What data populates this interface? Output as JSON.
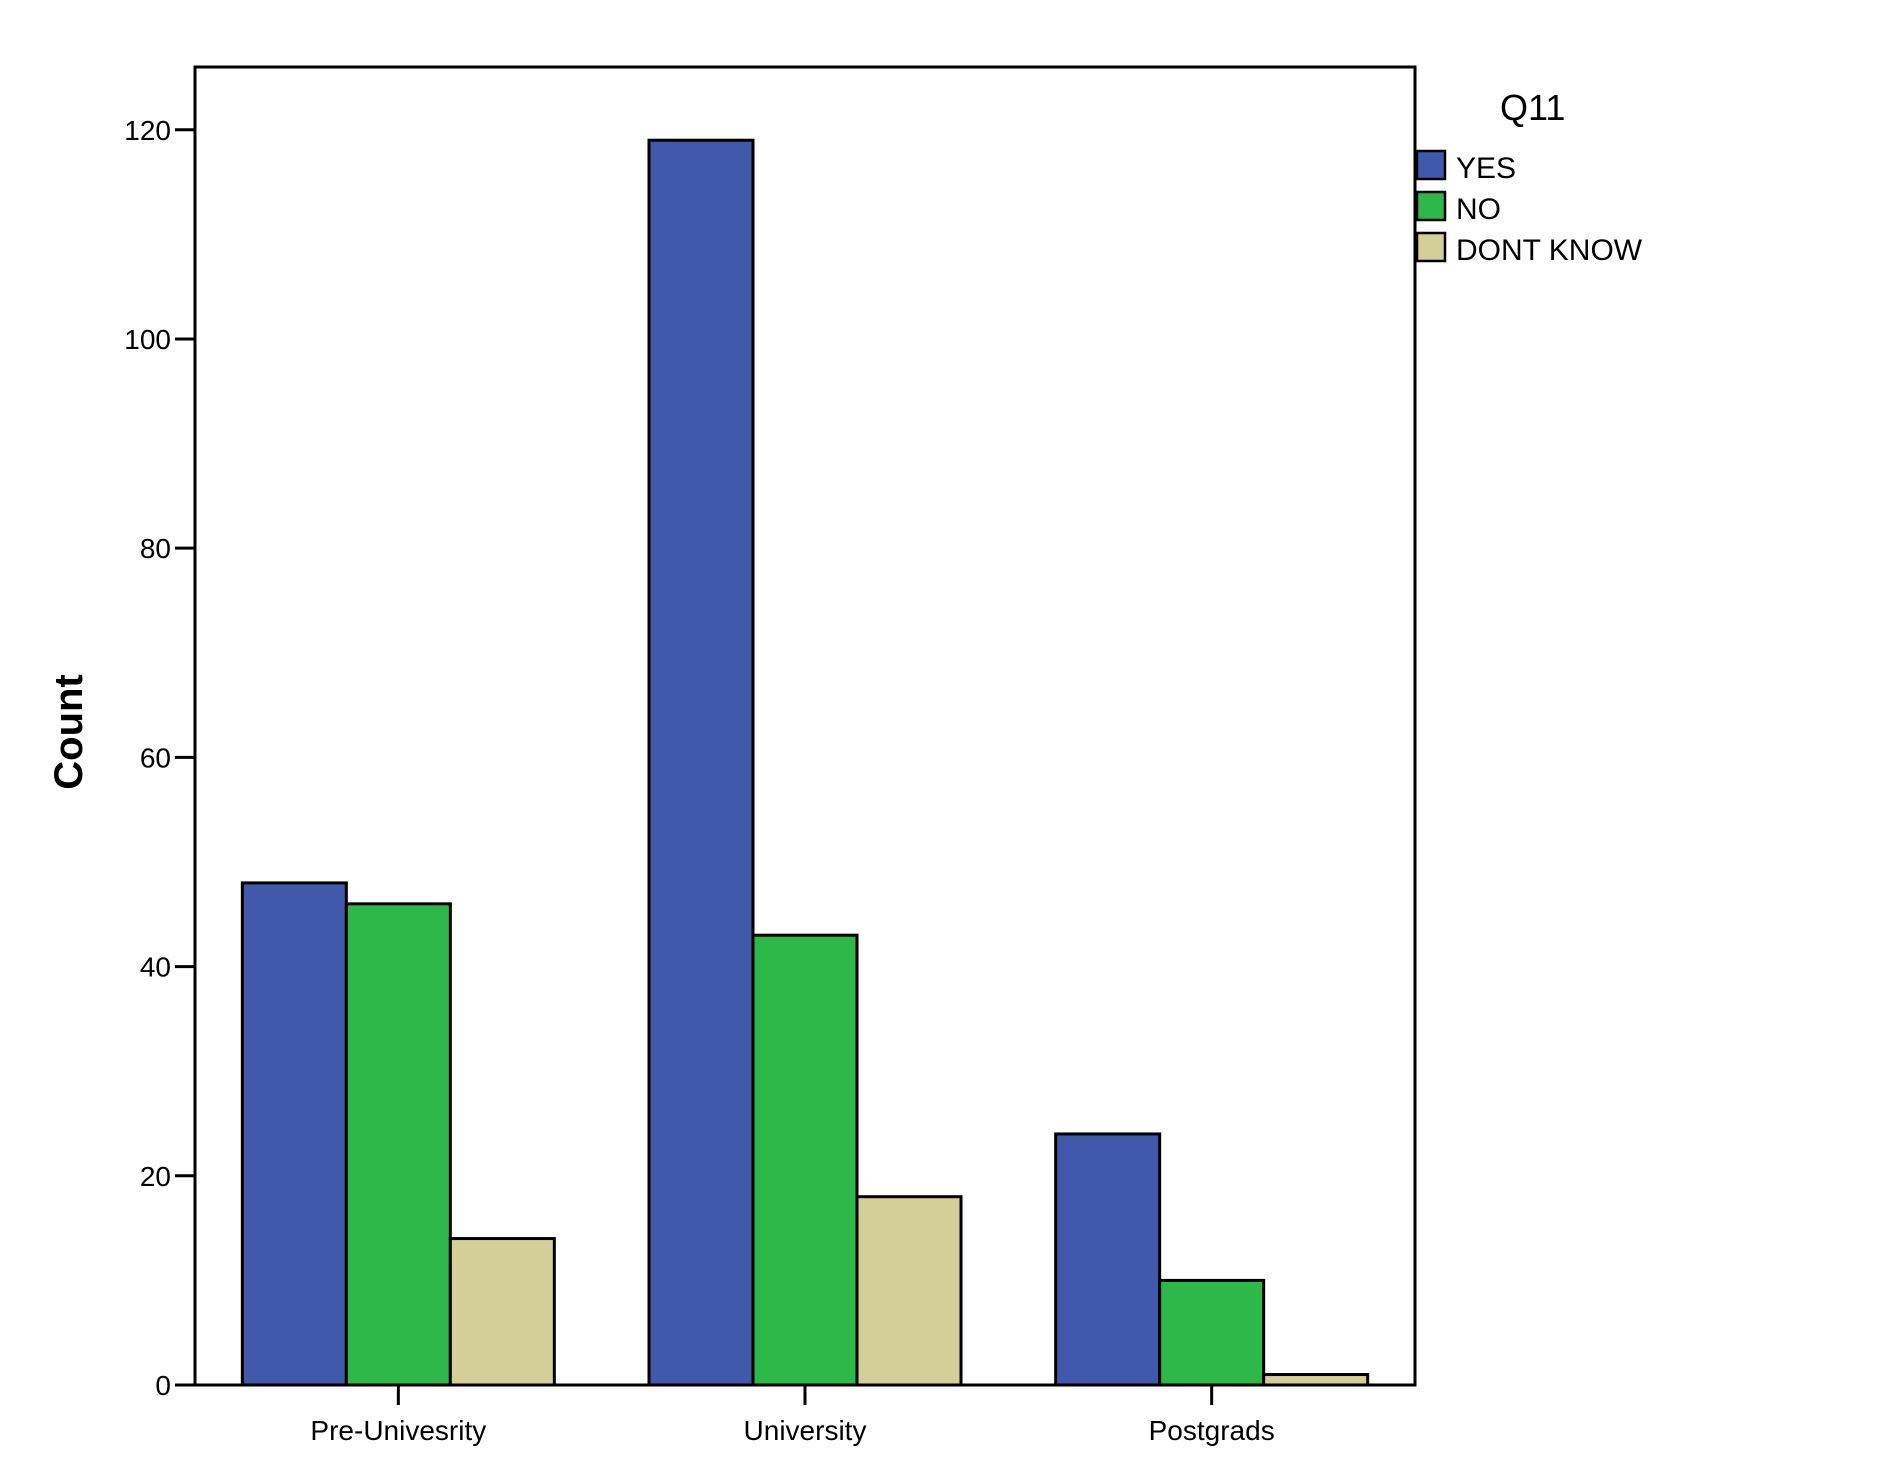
{
  "chart_data": {
    "type": "bar",
    "categories": [
      "Pre-Univesrity",
      "University",
      "Postgrads"
    ],
    "series": [
      {
        "name": "YES",
        "values": [
          48,
          119,
          24
        ],
        "color": "#4059aa"
      },
      {
        "name": "NO",
        "values": [
          46,
          43,
          10
        ],
        "color": "#2fb84a"
      },
      {
        "name": "DONT KNOW",
        "values": [
          14,
          18,
          1
        ],
        "color": "#d3cf98"
      }
    ],
    "xlabel": "",
    "ylabel": "Count",
    "ylim": [
      0,
      126
    ],
    "yticks": [
      0,
      20,
      40,
      60,
      80,
      100,
      120
    ],
    "legend_title": "Q11",
    "legend_position": "right",
    "grid": false
  }
}
